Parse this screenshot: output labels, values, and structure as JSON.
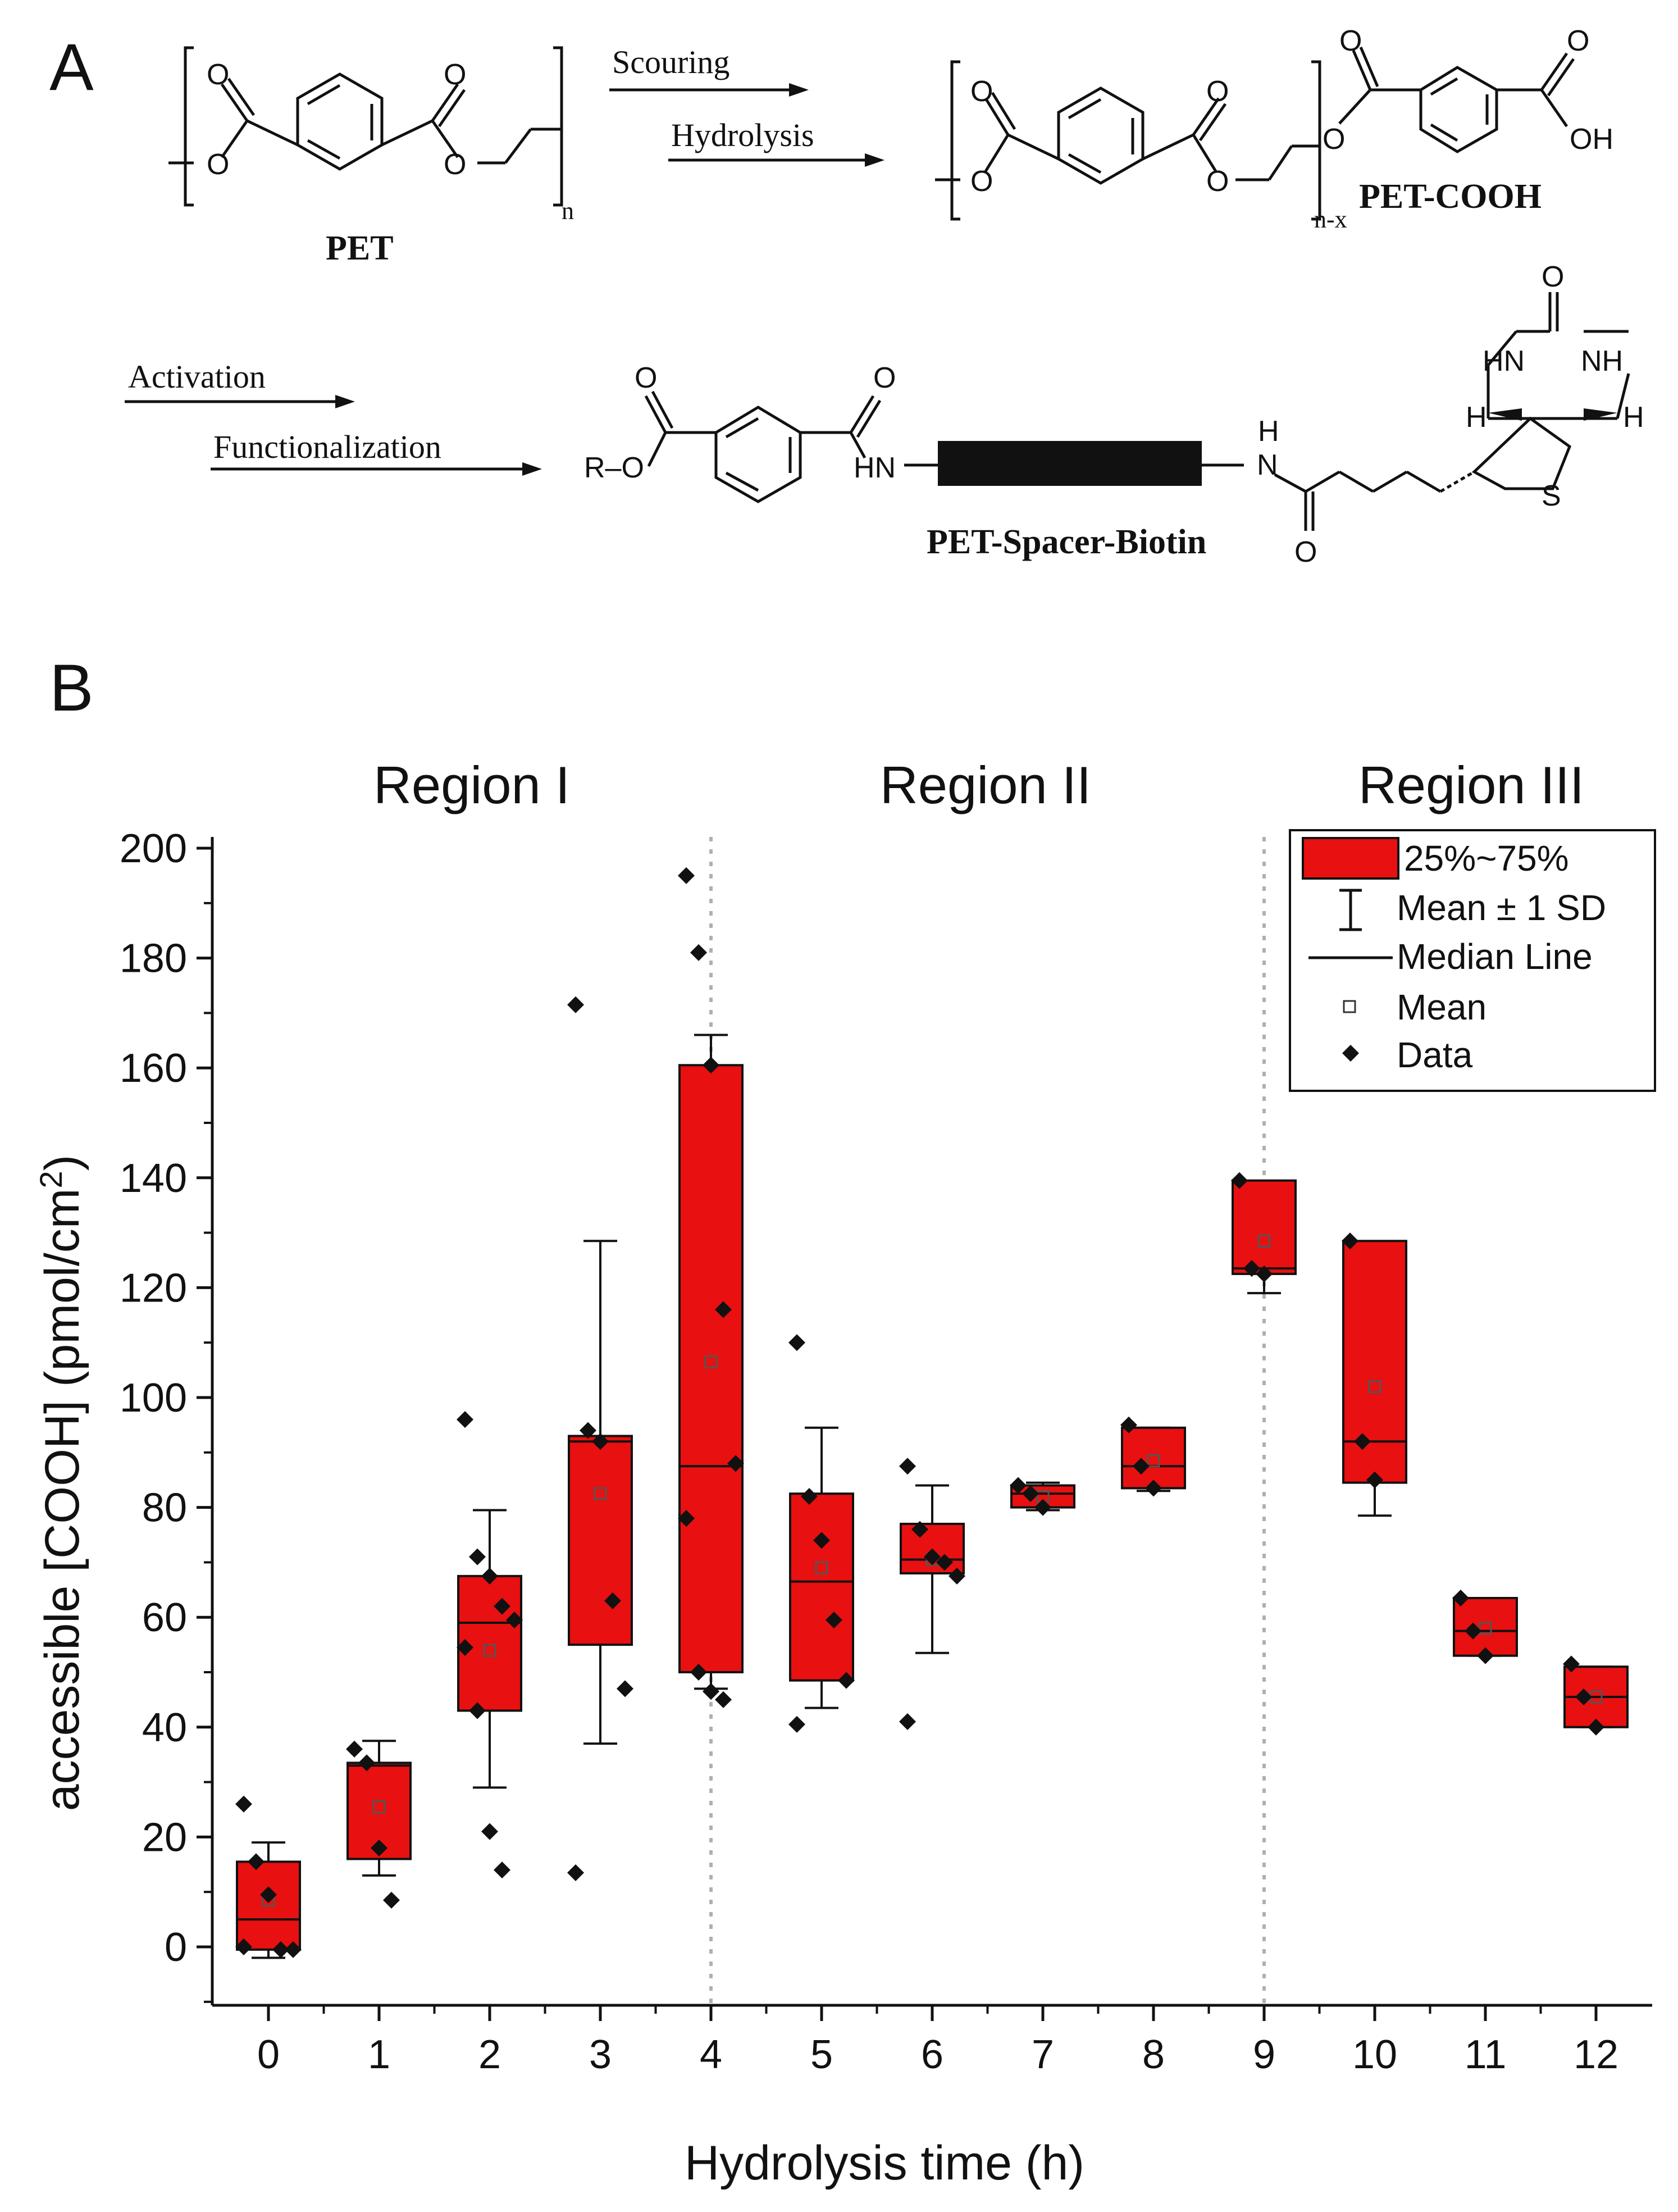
{
  "panel_a": {
    "letter": "A",
    "step1_arrow_top": "Scouring",
    "step1_arrow_bottom": "Hydrolysis",
    "step2_arrow_top": "Activation",
    "step2_arrow_bottom": "Functionalization",
    "pet_label": "PET",
    "pet_cooh_label": "PET-COOH",
    "pet_spacer_biotin_label": "PET-Spacer-Biotin",
    "repeat_n": "n",
    "repeat_nx": "n-x",
    "atoms": {
      "O": "O",
      "OH": "OH",
      "HN": "HN",
      "NH": "NH",
      "H": "H",
      "N": "N",
      "S": "S",
      "R_O": "R–O"
    }
  },
  "panel_b": {
    "letter": "B",
    "regions": [
      "Region I",
      "Region II",
      "Region III"
    ]
  },
  "chart_data": {
    "type": "box",
    "xlabel": "Hydrolysis time (h)",
    "ylabel_main": "accessible [COOH] (pmol/cm",
    "ylabel_sup": "2",
    "ylabel_end": ")",
    "ylim": [
      -10,
      200
    ],
    "yticks": [
      0,
      20,
      40,
      60,
      80,
      100,
      120,
      140,
      160,
      180,
      200
    ],
    "categories": [
      "0",
      "1",
      "2",
      "3",
      "4",
      "5",
      "6",
      "7",
      "8",
      "9",
      "10",
      "11",
      "12"
    ],
    "region_dividers_x": [
      4,
      9
    ],
    "legend": {
      "box": "25%~75%",
      "whisker": "Mean ± 1 SD",
      "median": "Median Line",
      "mean": "Mean",
      "data": "Data"
    },
    "boxes": [
      {
        "x": 0,
        "q1": -0.5,
        "q3": 15.5,
        "median": 5,
        "mean": 8.5,
        "sd_low": -2,
        "sd_high": 19,
        "data": [
          26,
          15.5,
          9.5,
          -0.5,
          -0.5,
          0
        ]
      },
      {
        "x": 1,
        "q1": 16,
        "q3": 33.5,
        "median": 33,
        "mean": 25.5,
        "sd_low": 13,
        "sd_high": 37.5,
        "data": [
          36,
          33.5,
          18,
          8.5
        ]
      },
      {
        "x": 2,
        "q1": 43,
        "q3": 67.5,
        "median": 59,
        "mean": 54,
        "sd_low": 29,
        "sd_high": 79.5,
        "data": [
          96,
          71,
          67.5,
          62,
          59.5,
          54.5,
          43,
          21,
          14
        ]
      },
      {
        "x": 3,
        "q1": 55,
        "q3": 93,
        "median": 92,
        "mean": 82.5,
        "sd_low": 37,
        "sd_high": 128.5,
        "data": [
          171.5,
          94,
          92,
          63,
          47,
          13.5
        ]
      },
      {
        "x": 4,
        "q1": 50,
        "q3": 160.5,
        "median": 87.5,
        "mean": 106.5,
        "sd_low": 47,
        "sd_high": 166,
        "data": [
          195,
          181,
          160.5,
          116,
          88,
          78,
          50,
          46.5,
          45
        ]
      },
      {
        "x": 5,
        "q1": 48.5,
        "q3": 82.5,
        "median": 66.5,
        "mean": 69,
        "sd_low": 43.5,
        "sd_high": 94.5,
        "data": [
          110,
          82,
          74,
          59.5,
          48.5,
          40.5
        ]
      },
      {
        "x": 6,
        "q1": 68,
        "q3": 77,
        "median": 70.5,
        "mean": 70.5,
        "sd_low": 53.5,
        "sd_high": 84,
        "data": [
          87.5,
          76,
          71,
          70,
          67.5,
          41
        ]
      },
      {
        "x": 7,
        "q1": 80,
        "q3": 84,
        "median": 82.5,
        "mean": 82,
        "sd_low": 79.5,
        "sd_high": 84.5,
        "data": [
          84,
          82.5,
          80
        ]
      },
      {
        "x": 8,
        "q1": 83.5,
        "q3": 94.5,
        "median": 87.5,
        "mean": 88.5,
        "sd_low": 83,
        "sd_high": 94.5,
        "data": [
          95,
          87.5,
          83.5
        ]
      },
      {
        "x": 9,
        "q1": 122.5,
        "q3": 139.5,
        "median": 123.5,
        "mean": 128.5,
        "sd_low": 119,
        "sd_high": 138,
        "data": [
          139.5,
          123.5,
          122.5
        ]
      },
      {
        "x": 10,
        "q1": 84.5,
        "q3": 128.5,
        "median": 92,
        "mean": 102,
        "sd_low": 78.5,
        "sd_high": 125.5,
        "data": [
          128.5,
          92,
          85
        ]
      },
      {
        "x": 11,
        "q1": 53,
        "q3": 63.5,
        "median": 57.5,
        "mean": 58,
        "sd_low": 53,
        "sd_high": 63,
        "data": [
          63.5,
          57.5,
          53
        ]
      },
      {
        "x": 12,
        "q1": 40,
        "q3": 51,
        "median": 45.5,
        "mean": 45.5,
        "sd_low": 40,
        "sd_high": 51,
        "data": [
          51.5,
          45.5,
          40
        ]
      }
    ]
  }
}
